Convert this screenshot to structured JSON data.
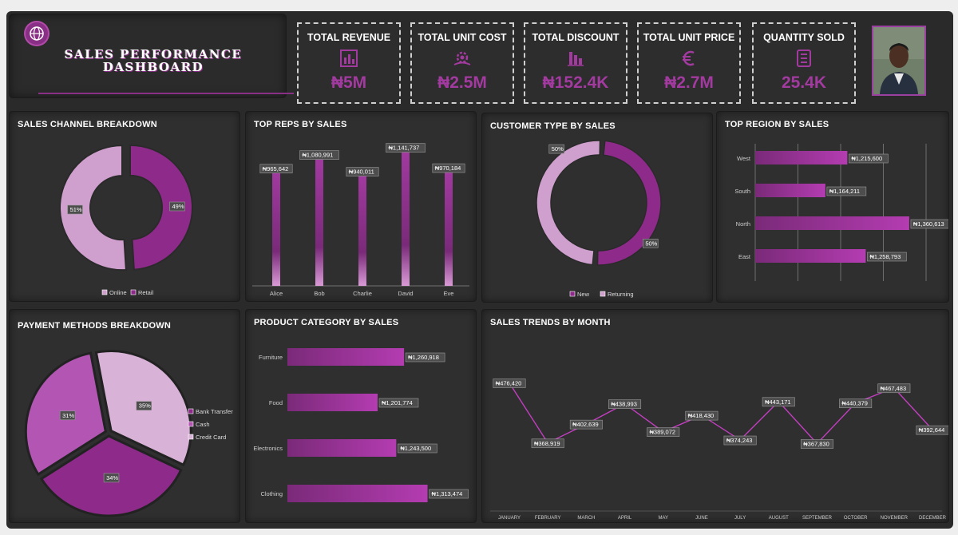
{
  "header": {
    "title_line1": "SALES PERFORMANCE",
    "title_line2": "DASHBOARD"
  },
  "kpis": [
    {
      "label": "TOTAL REVENUE",
      "value": "₦5M",
      "icon": "building-chart-icon"
    },
    {
      "label": "TOTAL UNIT COST",
      "value": "₦2.5M",
      "icon": "money-cog-icon"
    },
    {
      "label": "TOTAL DISCOUNT",
      "value": "₦152.4K",
      "icon": "bar-chart-down-icon"
    },
    {
      "label": "TOTAL UNIT PRICE",
      "value": "₦2.7M",
      "icon": "euro-icon"
    },
    {
      "label": "QUANTITY SOLD",
      "value": "25.4K",
      "icon": "checklist-icon"
    }
  ],
  "colors": {
    "accent": "#a23aa0",
    "light": "#cf9fce",
    "dark": "#8e2a8a",
    "panel": "#2f2f2f",
    "frame": "#2a2a2a"
  },
  "panels": {
    "sales_channel": "SALES CHANNEL BREAKDOWN",
    "top_reps": "TOP REPS BY SALES",
    "customer_type": "CUSTOMER TYPE BY SALES",
    "top_region": "TOP REGION BY SALES",
    "payment": "PAYMENT METHODS BREAKDOWN",
    "product": "PRODUCT CATEGORY BY SALES",
    "trends": "SALES TRENDS BY MONTH"
  },
  "chart_data": [
    {
      "id": "sales_channel",
      "type": "pie",
      "variant": "donut",
      "title": "SALES CHANNEL BREAKDOWN",
      "categories": [
        "Online",
        "Retail"
      ],
      "values": [
        51,
        49
      ],
      "labels": [
        "51%",
        "49%"
      ],
      "colors": [
        "#cf9fce",
        "#8e2a8a"
      ]
    },
    {
      "id": "top_reps",
      "type": "bar",
      "title": "TOP REPS BY SALES",
      "categories": [
        "Alice",
        "Bob",
        "Charlie",
        "David",
        "Eve"
      ],
      "values": [
        965642,
        1080991,
        940011,
        1141737,
        970184
      ],
      "labels": [
        "₦965,642",
        "₦1,080,991",
        "₦940,011",
        "₦1,141,737",
        "₦970,184"
      ],
      "ylim": [
        0,
        1200000
      ]
    },
    {
      "id": "customer_type",
      "type": "pie",
      "variant": "donut",
      "title": "CUSTOMER TYPE BY SALES",
      "categories": [
        "New",
        "Returning"
      ],
      "values": [
        50,
        50
      ],
      "labels": [
        "50%",
        "50%"
      ],
      "colors": [
        "#8e2a8a",
        "#cf9fce"
      ]
    },
    {
      "id": "top_region",
      "type": "bar",
      "orientation": "horizontal",
      "title": "TOP REGION BY SALES",
      "categories": [
        "West",
        "South",
        "North",
        "East"
      ],
      "values": [
        1215600,
        1164211,
        1360613,
        1258793
      ],
      "labels": [
        "₦1,215,600",
        "₦1,164,211",
        "₦1,360,613",
        "₦1,258,793"
      ],
      "xlim": [
        1000000,
        1400000
      ]
    },
    {
      "id": "payment",
      "type": "pie",
      "title": "PAYMENT METHODS BREAKDOWN",
      "categories": [
        "Bank Transfer",
        "Cash",
        "Credit Card"
      ],
      "values": [
        34,
        31,
        35
      ],
      "labels": [
        "34%",
        "31%",
        "35%"
      ],
      "colors": [
        "#8e2a8a",
        "#b356b3",
        "#d9b3d7"
      ]
    },
    {
      "id": "product",
      "type": "bar",
      "orientation": "horizontal",
      "title": "PRODUCT CATEGORY BY SALES",
      "categories": [
        "Furniture",
        "Food",
        "Electronics",
        "Clothing"
      ],
      "values": [
        1260918,
        1201774,
        1243500,
        1313474
      ],
      "labels": [
        "₦1,260,918",
        "₦1,201,774",
        "₦1,243,500",
        "₦1,313,474"
      ],
      "xlim": [
        1000000,
        1350000
      ]
    },
    {
      "id": "trends",
      "type": "line",
      "title": "SALES TRENDS BY MONTH",
      "categories": [
        "JANUARY",
        "FEBRUARY",
        "MARCH",
        "APRIL",
        "MAY",
        "JUNE",
        "JULY",
        "AUGUST",
        "SEPTEMBER",
        "OCTOBER",
        "NOVEMBER",
        "DECEMBER"
      ],
      "values": [
        476420,
        368919,
        402639,
        438993,
        389072,
        418430,
        374243,
        443171,
        367830,
        440379,
        467483,
        392644
      ],
      "labels": [
        "₦476,420",
        "₦368,919",
        "₦402,639",
        "₦438,993",
        "₦389,072",
        "₦418,430",
        "₦374,243",
        "₦443,171",
        "₦367,830",
        "₦440,379",
        "₦467,483",
        "₦392,644"
      ],
      "ylim": [
        250000,
        550000
      ]
    }
  ]
}
